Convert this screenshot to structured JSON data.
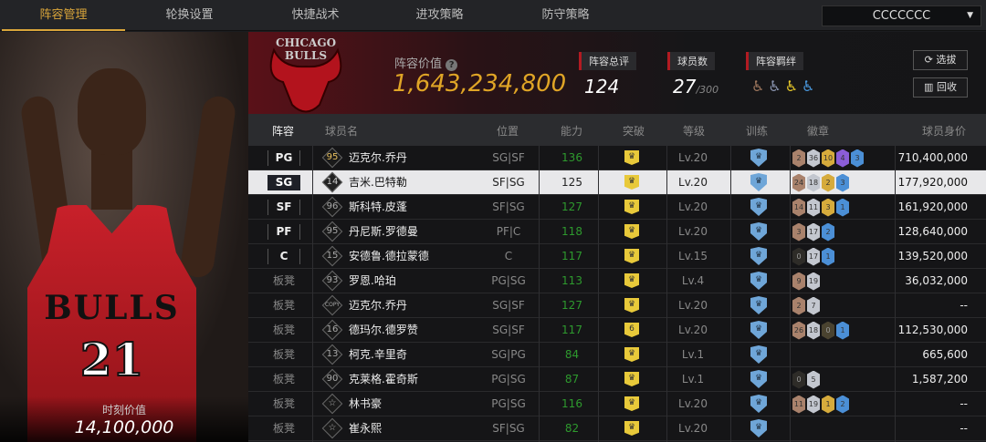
{
  "nav": {
    "tabs": [
      "阵容管理",
      "轮换设置",
      "快捷战术",
      "进攻策略",
      "防守策略"
    ],
    "active": 0,
    "dropdown": "CCCCCCC"
  },
  "player_card": {
    "jersey_text": "BULLS",
    "jersey_number": "21",
    "moment_label": "时刻价值",
    "moment_value": "14,100,000"
  },
  "team": {
    "logo_text": "CHICAGO BULLS",
    "value_label": "阵容价值",
    "help_icon": "?",
    "value": "1,643,234,800",
    "rating_label": "阵容总评",
    "rating": "124",
    "count_label": "球员数",
    "count": "27",
    "count_max": "/300",
    "bond_label": "阵容羁绊",
    "bond_icons": [
      {
        "name": "bond-bronze-icon",
        "color": "#a0785e"
      },
      {
        "name": "bond-silver-icon",
        "color": "#8a95b0"
      },
      {
        "name": "bond-gold-icon",
        "color": "#e8c92a"
      },
      {
        "name": "bond-blue-icon",
        "color": "#4a9ae0"
      }
    ],
    "draft_button": "选拔",
    "recycle_button": "回收"
  },
  "table": {
    "headers": [
      "阵容",
      "球员名",
      "位置",
      "能力",
      "突破",
      "等级",
      "训练",
      "徽章",
      "球员身价"
    ],
    "rows": [
      {
        "slot": "PG",
        "pos_slot": true,
        "num": "95",
        "num_gold": true,
        "name": "迈克尔.乔丹",
        "pos": "SG|SF",
        "ability": "136",
        "breakthrough": "♛",
        "level": "Lv.20",
        "badges": [
          [
            "2",
            "bronze"
          ],
          [
            "36",
            "silver"
          ],
          [
            "10",
            "gold"
          ],
          [
            "4",
            "purple"
          ],
          [
            "3",
            "blue"
          ]
        ],
        "price": "710,400,000"
      },
      {
        "slot": "SG",
        "pos_slot": true,
        "selected": true,
        "num": "14",
        "name": "吉米.巴特勒",
        "pos": "SF|SG",
        "ability": "125",
        "breakthrough": "♛",
        "level": "Lv.20",
        "badges": [
          [
            "24",
            "bronze"
          ],
          [
            "18",
            "silver"
          ],
          [
            "2",
            "gold"
          ],
          [
            "3",
            "blue"
          ]
        ],
        "price": "177,920,000"
      },
      {
        "slot": "SF",
        "pos_slot": true,
        "num": "96",
        "name": "斯科特.皮蓬",
        "pos": "SF|SG",
        "ability": "127",
        "breakthrough": "♛",
        "level": "Lv.20",
        "badges": [
          [
            "14",
            "bronze"
          ],
          [
            "11",
            "silver"
          ],
          [
            "3",
            "gold"
          ],
          [
            "1",
            "blue"
          ]
        ],
        "price": "161,920,000"
      },
      {
        "slot": "PF",
        "pos_slot": true,
        "num": "95",
        "name": "丹尼斯.罗德曼",
        "pos": "PF|C",
        "ability": "118",
        "breakthrough": "♛",
        "level": "Lv.20",
        "badges": [
          [
            "3",
            "bronze"
          ],
          [
            "17",
            "silver"
          ],
          [
            "2",
            "blue"
          ]
        ],
        "price": "128,640,000"
      },
      {
        "slot": "C",
        "pos_slot": true,
        "num": "15",
        "name": "安德鲁.德拉蒙德",
        "pos": "C",
        "ability": "117",
        "breakthrough": "♛",
        "level": "Lv.15",
        "badges": [
          [
            "0",
            "dark"
          ],
          [
            "17",
            "silver"
          ],
          [
            "1",
            "blue"
          ]
        ],
        "price": "139,520,000"
      },
      {
        "slot": "板凳",
        "num": "93",
        "name": "罗恩.哈珀",
        "pos": "PG|SG",
        "ability": "113",
        "breakthrough": "♛",
        "level": "Lv.4",
        "badges": [
          [
            "9",
            "bronze"
          ],
          [
            "19",
            "silver"
          ]
        ],
        "price": "36,032,000"
      },
      {
        "slot": "板凳",
        "num": "COPY",
        "name": "迈克尔.乔丹",
        "pos": "SG|SF",
        "ability": "127",
        "breakthrough": "♛",
        "level": "Lv.20",
        "badges": [
          [
            "2",
            "bronze"
          ],
          [
            "7",
            "silver"
          ]
        ],
        "price": "--"
      },
      {
        "slot": "板凳",
        "num": "16",
        "name": "德玛尔.德罗赞",
        "pos": "SG|SF",
        "ability": "117",
        "breakthrough": "6",
        "level": "Lv.20",
        "badges": [
          [
            "26",
            "bronze"
          ],
          [
            "18",
            "silver"
          ],
          [
            "0",
            "darkgold"
          ],
          [
            "1",
            "blue"
          ]
        ],
        "price": "112,530,000"
      },
      {
        "slot": "板凳",
        "num": "13",
        "name": "柯克.辛里奇",
        "pos": "SG|PG",
        "ability": "84",
        "breakthrough": "♛",
        "level": "Lv.1",
        "badges": [],
        "price": "665,600"
      },
      {
        "slot": "板凳",
        "num": "90",
        "name": "克莱格.霍奇斯",
        "pos": "PG|SG",
        "ability": "87",
        "breakthrough": "♛",
        "level": "Lv.1",
        "badges": [
          [
            "0",
            "dark"
          ],
          [
            "5",
            "silver"
          ]
        ],
        "price": "1,587,200"
      },
      {
        "slot": "板凳",
        "num": "☆",
        "name": "林书豪",
        "pos": "PG|SG",
        "ability": "116",
        "breakthrough": "♛",
        "level": "Lv.20",
        "badges": [
          [
            "11",
            "bronze"
          ],
          [
            "19",
            "silver"
          ],
          [
            "1",
            "gold"
          ],
          [
            "2",
            "blue"
          ]
        ],
        "price": "--"
      },
      {
        "slot": "板凳",
        "num": "☆",
        "name": "崔永熙",
        "pos": "SF|SG",
        "ability": "82",
        "breakthrough": "♛",
        "level": "Lv.20",
        "badges": [],
        "price": "--"
      }
    ]
  },
  "badge_colors": {
    "bronze": "#a9826c",
    "silver": "#c3c7cf",
    "gold": "#d6ab3c",
    "purple": "#8b5dd8",
    "blue": "#4b8fd6",
    "dark": "#2e2c28",
    "darkgold": "#4a4330"
  },
  "accent": "#d9a53a"
}
